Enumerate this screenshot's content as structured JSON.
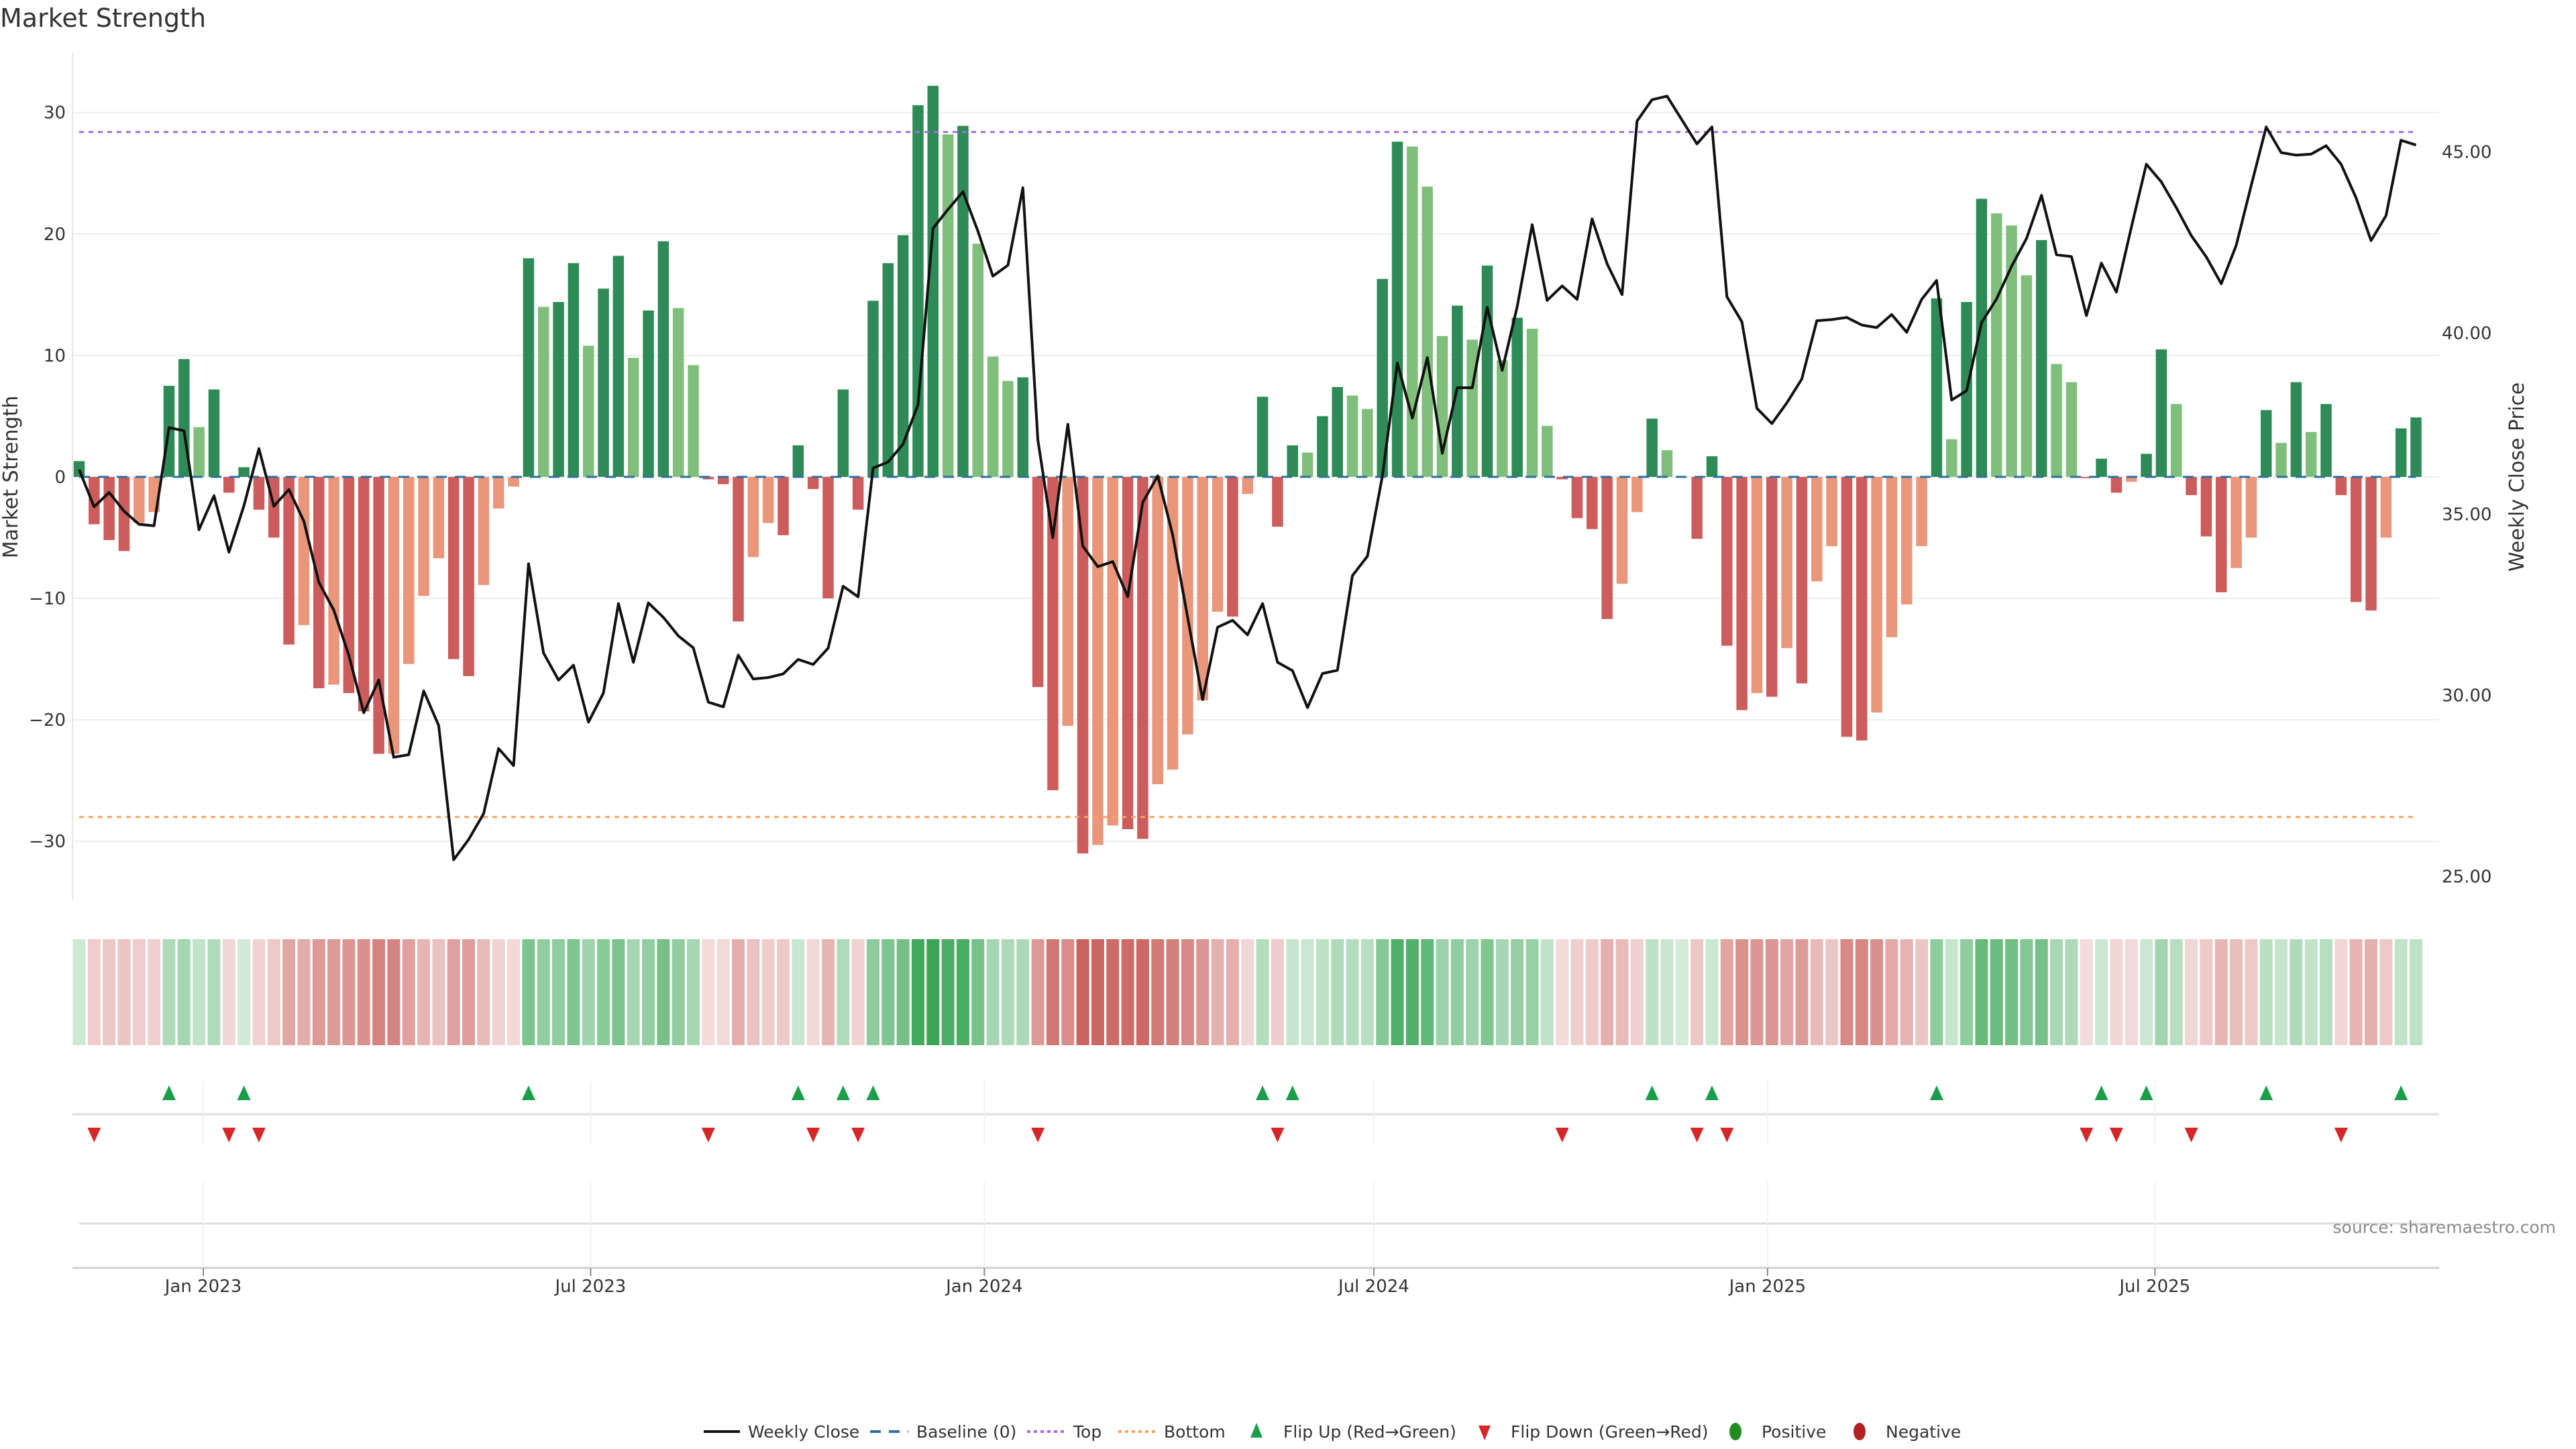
{
  "chart_data": {
    "type": "bar",
    "title": "Market Strength",
    "ylabel": "Market Strength",
    "y2label": "Weekly Close Price",
    "ylim": [
      -34.8,
      34.9
    ],
    "y2lim": [
      24.36,
      47.73
    ],
    "yticks": [
      -30,
      -20,
      -10,
      0,
      10,
      20,
      30
    ],
    "y2ticks": [
      "25.00",
      "30.00",
      "35.00",
      "40.00",
      "45.00"
    ],
    "start_week": "2022-11-04",
    "frequency": "weekly",
    "xticks": [
      {
        "label": "Jan 2023",
        "date": "2023-01-01"
      },
      {
        "label": "Jul 2023",
        "date": "2023-07-01"
      },
      {
        "label": "Jan 2024",
        "date": "2024-01-01"
      },
      {
        "label": "Jul 2024",
        "date": "2024-07-01"
      },
      {
        "label": "Jan 2025",
        "date": "2025-01-01"
      },
      {
        "label": "Jul 2025",
        "date": "2025-07-01"
      }
    ],
    "top_level": 28.4,
    "bottom_level": -28.0,
    "baseline": 0,
    "strength": [
      1.3,
      -3.9,
      -5.2,
      -6.1,
      -3.8,
      -2.9,
      7.5,
      9.7,
      4.1,
      7.2,
      -1.3,
      0.8,
      -2.7,
      -5.0,
      -13.8,
      -12.2,
      -17.4,
      -17.1,
      -17.8,
      -19.3,
      -22.8,
      -22.8,
      -15.4,
      -9.8,
      -6.7,
      -15.0,
      -16.4,
      -8.9,
      -2.6,
      -0.8,
      18.0,
      14.0,
      14.4,
      17.6,
      10.8,
      15.5,
      18.2,
      9.8,
      13.7,
      19.4,
      13.9,
      9.2,
      -0.2,
      -0.6,
      -11.9,
      -6.6,
      -3.8,
      -4.8,
      2.6,
      -1.0,
      -10.0,
      7.2,
      -2.7,
      14.5,
      17.6,
      19.9,
      30.6,
      32.2,
      28.2,
      28.9,
      19.2,
      9.9,
      7.9,
      8.2,
      -17.3,
      -25.8,
      -20.5,
      -31.0,
      -30.3,
      -28.7,
      -29.0,
      -29.8,
      -25.3,
      -24.1,
      -21.2,
      -18.4,
      -11.1,
      -11.5,
      -1.4,
      6.6,
      -4.1,
      2.6,
      2.0,
      5.0,
      7.4,
      6.7,
      5.6,
      16.3,
      27.6,
      27.2,
      23.9,
      11.6,
      14.1,
      11.3,
      17.4,
      9.6,
      13.1,
      12.2,
      4.2,
      -0.2,
      -3.4,
      -4.3,
      -11.7,
      -8.8,
      -2.9,
      4.8,
      2.2,
      0.0,
      -5.1,
      1.7,
      -13.9,
      -19.2,
      -17.8,
      -18.1,
      -14.1,
      -17.0,
      -8.6,
      -5.7,
      -21.4,
      -21.7,
      -19.4,
      -13.2,
      -10.5,
      -5.7,
      14.7,
      3.1,
      14.4,
      22.9,
      21.7,
      20.7,
      16.6,
      19.5,
      9.3,
      7.8,
      -0.1,
      1.5,
      -1.3,
      -0.4,
      1.9,
      10.5,
      6.0,
      -1.5,
      -4.9,
      -9.5,
      -7.5,
      -5.0,
      5.5,
      2.8,
      7.8,
      3.7,
      6.0,
      -1.5,
      -10.3,
      -11.0,
      -5.0,
      4.0,
      4.9
    ],
    "shades": "GRRRSSGGLGRGRRRSRSRRRSSSSRRSSSGLGGLGGLGGLLRRRSSRGRRGRGGGGGLGLLLGRRSRSSRRSSSSSRSGRGLGGLLGGLLLGLGLGLLRRRRSSGLLRGRRSRSRSSRRSSSSGLGGLLLGLLRGRSGGLRRRSSGLGLGRRRSGG",
    "shade_legend": {
      "G": "positive rising",
      "L": "positive falling",
      "R": "negative falling",
      "S": "negative rising"
    },
    "weekly_close": [
      36.23,
      35.2,
      35.6,
      35.08,
      34.72,
      34.68,
      37.39,
      37.3,
      34.57,
      35.51,
      33.95,
      35.23,
      36.81,
      35.22,
      35.68,
      34.81,
      33.12,
      32.35,
      31.11,
      29.52,
      30.42,
      28.29,
      28.36,
      30.12,
      29.17,
      25.46,
      26.02,
      26.73,
      28.53,
      28.06,
      33.63,
      31.17,
      30.42,
      30.83,
      29.26,
      30.06,
      32.53,
      30.91,
      32.55,
      32.15,
      31.64,
      31.31,
      29.81,
      29.68,
      31.11,
      30.45,
      30.49,
      30.59,
      30.99,
      30.85,
      31.3,
      33.01,
      32.72,
      36.27,
      36.44,
      36.93,
      38.02,
      42.89,
      43.41,
      43.9,
      42.81,
      41.57,
      41.87,
      44.01,
      37.05,
      34.35,
      37.48,
      34.12,
      33.55,
      33.69,
      32.72,
      35.32,
      36.06,
      34.43,
      32.15,
      29.88,
      31.88,
      32.07,
      31.67,
      32.53,
      30.91,
      30.68,
      29.66,
      30.6,
      30.69,
      33.3,
      33.84,
      36.05,
      39.17,
      37.65,
      39.32,
      36.68,
      38.49,
      38.49,
      40.71,
      38.97,
      40.73,
      42.99,
      40.9,
      41.3,
      40.93,
      43.15,
      41.91,
      41.06,
      45.85,
      46.44,
      46.54,
      45.88,
      45.22,
      45.69,
      41.0,
      40.31,
      37.92,
      37.5,
      38.07,
      38.73,
      40.34,
      40.37,
      40.43,
      40.22,
      40.15,
      40.51,
      40.02,
      40.93,
      41.45,
      38.15,
      38.41,
      40.29,
      40.94,
      41.84,
      42.61,
      43.8,
      42.16,
      42.11,
      40.48,
      41.93,
      41.13,
      42.92,
      44.66,
      44.17,
      43.46,
      42.69,
      42.1,
      41.36,
      42.42,
      44.07,
      45.69,
      44.98,
      44.91,
      44.94,
      45.17,
      44.66,
      43.73,
      42.55,
      43.24,
      45.32,
      45.19
    ],
    "flip_up_weeks": [
      7,
      12,
      31,
      49,
      52,
      54,
      80,
      82,
      106,
      110,
      125,
      136,
      139,
      147,
      156
    ],
    "flip_down_weeks": [
      2,
      11,
      13,
      43,
      50,
      53,
      65,
      81,
      100,
      109,
      111,
      135,
      137,
      142,
      152
    ],
    "legend": {
      "placement": "bottom-center",
      "items": [
        {
          "label": "Weekly Close",
          "symbol": "line"
        },
        {
          "label": "Baseline (0)",
          "symbol": "dashed"
        },
        {
          "label": "Top",
          "symbol": "dotted"
        },
        {
          "label": "Bottom",
          "symbol": "dotted"
        },
        {
          "label": "Flip Up (Red→Green)",
          "symbol": "triangle-up"
        },
        {
          "label": "Flip Down (Green→Red)",
          "symbol": "triangle-down"
        },
        {
          "label": "Positive",
          "symbol": "circle"
        },
        {
          "label": "Negative",
          "symbol": "circle"
        }
      ]
    },
    "source": "source: sharemaestro.com",
    "colors": {
      "G": "#2e8b57",
      "L": "#7fbf7b",
      "R": "#cd5c5c",
      "S": "#e9967a",
      "line": "#111111",
      "baseline": "#2f6f9f",
      "top": "#a66be0",
      "bottom": "#f4a460",
      "flip_up": "#1a9e4a",
      "flip_down": "#d62728",
      "positive": "#228b22",
      "negative": "#b22222",
      "strip_pos": "#3aa655",
      "strip_neg": "#c9605c"
    }
  }
}
